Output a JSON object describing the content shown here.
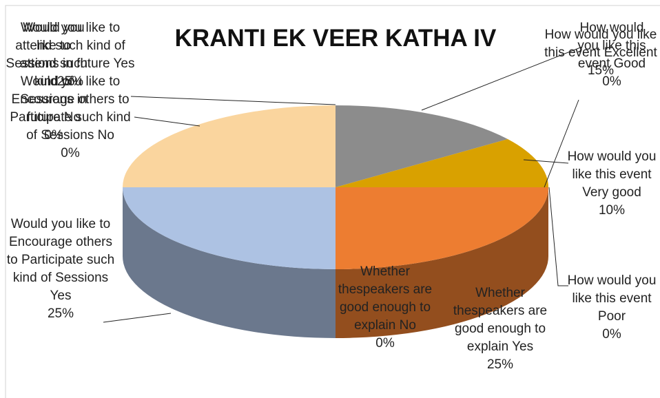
{
  "chart_data": {
    "type": "pie3d",
    "title": "KRANTI EK VEER KATHA IV",
    "categories": [
      "How would you like this event Good",
      "How would you like this event Excellent",
      "How would you like this event Very good",
      "How would you like this event Poor",
      "Whether thespeakers are good enough to explain  Yes",
      "Whether thespeakers are good enough to explain  No",
      "Would you like to Encourage others to Participate such kind of Sessions  Yes",
      "Would you like to Encourage others to Participate such kind of Sessions  No",
      "Would you like to attend such kind of Sessions in future Yes",
      "Would you like to attend such kind of Sessions in future No"
    ],
    "values": [
      0,
      15,
      10,
      0,
      25,
      0,
      25,
      0,
      25,
      0
    ],
    "value_labels": [
      "0%",
      "15%",
      "10%",
      "0%",
      "25%",
      "0%",
      "25%",
      "0%",
      "25%",
      "0%"
    ],
    "colors": [
      "#b0b0b0",
      "#8c8c8c",
      "#d9a100",
      "#5b9bd5",
      "#ed7d31",
      "#a5a5a5",
      "#adc2e3",
      "#4472c4",
      "#fad59e",
      "#70ad47"
    ]
  }
}
